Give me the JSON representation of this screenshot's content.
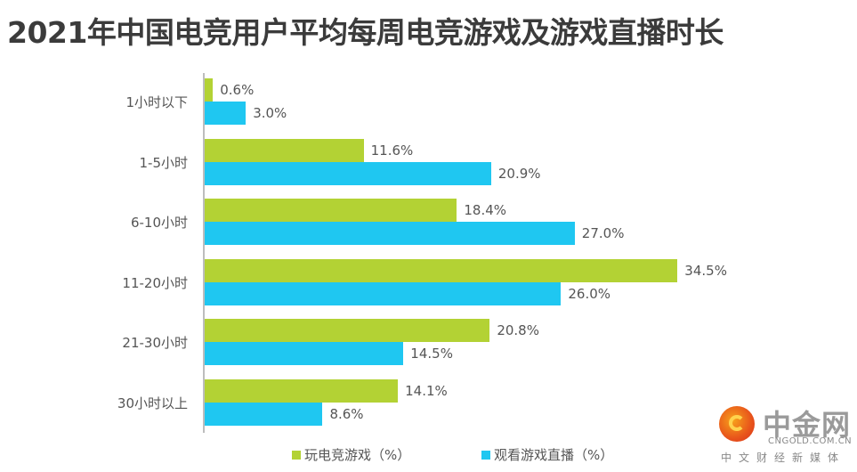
{
  "title": "2021年中国电竞用户平均每周电竞游戏及游戏直播时长",
  "chart_data": {
    "type": "bar",
    "orientation": "horizontal",
    "title": "2021年中国电竞用户平均每周电竞游戏及游戏直播时长",
    "xlabel": "",
    "ylabel": "",
    "categories": [
      "1小时以下",
      "1-5小时",
      "6-10小时",
      "11-20小时",
      "21-30小时",
      "30小时以上"
    ],
    "series": [
      {
        "name": "玩电竞游戏（%）",
        "color": "#b3d234",
        "values": [
          0.6,
          11.6,
          18.4,
          34.5,
          20.8,
          14.1
        ]
      },
      {
        "name": "观看游戏直播（%）",
        "color": "#1fc7f1",
        "values": [
          3.0,
          20.9,
          27.0,
          26.0,
          14.5,
          8.6
        ]
      }
    ],
    "labels": {
      "green": [
        "0.6%",
        "11.6%",
        "18.4%",
        "34.5%",
        "20.8%",
        "14.1%"
      ],
      "blue": [
        "3.0%",
        "20.9%",
        "27.0%",
        "26.0%",
        "14.5%",
        "8.6%"
      ]
    },
    "grid": false,
    "legend_position": "bottom"
  },
  "legend": {
    "green_label": "玩电竞游戏（%）",
    "blue_label": "观看游戏直播（%）"
  },
  "watermark": {
    "name": "中金网",
    "url": "CNGOLD.COM.CN",
    "tagline": "中文财经新媒体"
  }
}
